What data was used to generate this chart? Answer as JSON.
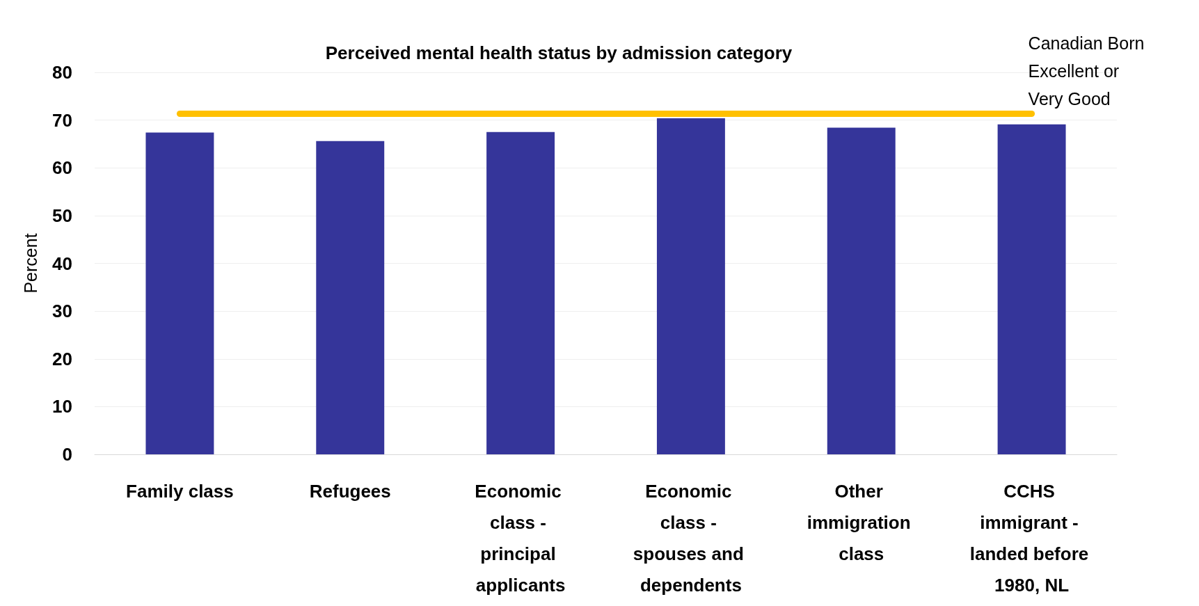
{
  "chart_data": {
    "type": "bar",
    "title": "Perceived mental health status by admission category",
    "ylabel": "Percent",
    "categories": [
      "Family class",
      "Refugees",
      "Economic class - principal applicants",
      "Economic class - spouses and dependents",
      "Other immigration class",
      "CCHS immigrant - landed before 1980, NL"
    ],
    "values": [
      67.4,
      65.6,
      67.5,
      70.4,
      68.4,
      69.1
    ],
    "color": "#35359a",
    "ylim": [
      0,
      80
    ],
    "yticks": [
      0,
      10,
      20,
      30,
      40,
      50,
      60,
      70,
      80
    ],
    "grid": "y",
    "ref_lines": [
      {
        "axis": "y",
        "value": 71.3,
        "label": "Canadian Born Excellent or Very Good",
        "color": "#ffc000",
        "line_style": "solid"
      }
    ]
  }
}
